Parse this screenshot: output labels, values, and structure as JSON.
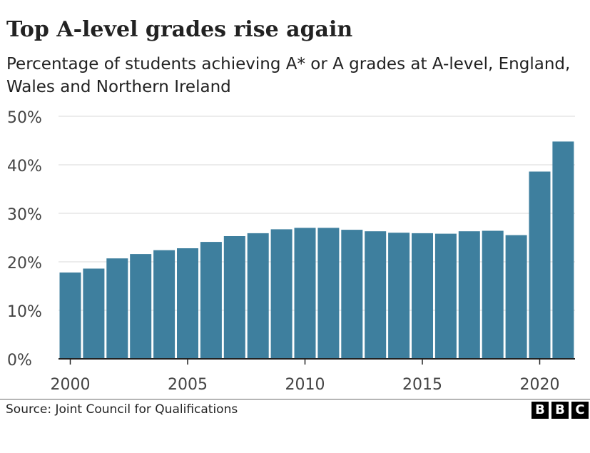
{
  "header": {
    "title": "Top A-level grades rise again",
    "subtitle": "Percentage of students achieving A* or A grades at A-level, England, Wales and Northern Ireland"
  },
  "footer": {
    "source": "Source: Joint Council for Qualifications",
    "logo_letters": [
      "B",
      "B",
      "C"
    ]
  },
  "colors": {
    "bar": "#3e7f9e",
    "grid": "#d9d9d9",
    "axis": "#222222",
    "text": "#222222",
    "tick_text": "#444444"
  },
  "chart_data": {
    "type": "bar",
    "x": [
      2000,
      2001,
      2002,
      2003,
      2004,
      2005,
      2006,
      2007,
      2008,
      2009,
      2010,
      2011,
      2012,
      2013,
      2014,
      2015,
      2016,
      2017,
      2018,
      2019,
      2020,
      2021
    ],
    "values": [
      17.8,
      18.6,
      20.7,
      21.6,
      22.4,
      22.8,
      24.1,
      25.3,
      25.9,
      26.7,
      27.0,
      27.0,
      26.6,
      26.3,
      26.0,
      25.9,
      25.8,
      26.3,
      26.4,
      25.5,
      38.6,
      44.8
    ],
    "x_tick_labels": [
      "2000",
      "2005",
      "2010",
      "2015",
      "2020"
    ],
    "x_tick_values": [
      2000,
      2005,
      2010,
      2015,
      2020
    ],
    "y_tick_labels": [
      "0%",
      "10%",
      "20%",
      "30%",
      "40%",
      "50%"
    ],
    "y_tick_values": [
      0,
      10,
      20,
      30,
      40,
      50
    ],
    "ylim": [
      0,
      50
    ],
    "grid": true,
    "legend": "none"
  }
}
